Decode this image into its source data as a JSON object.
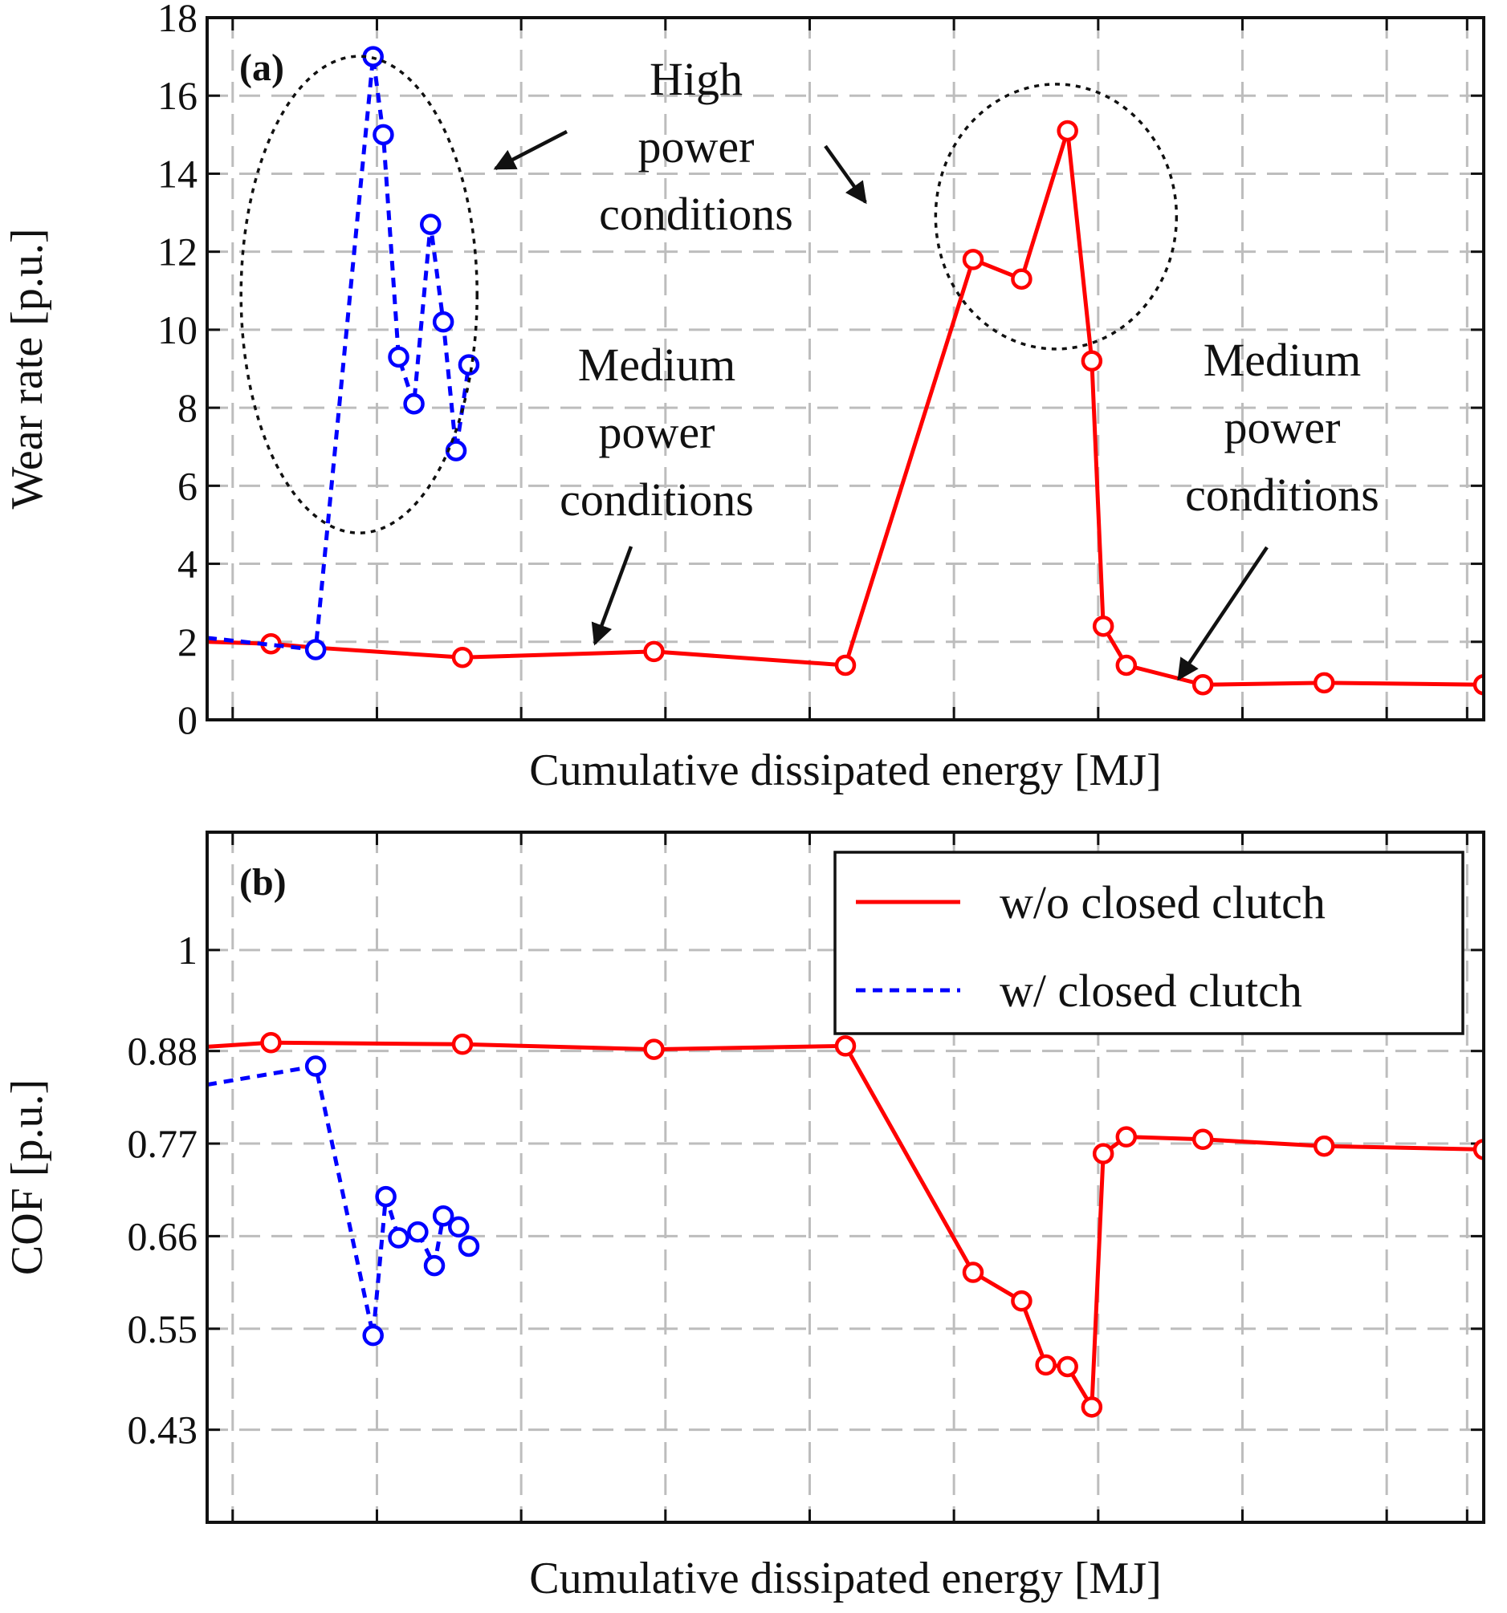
{
  "chart_data": [
    {
      "panel": "(a)",
      "type": "line",
      "xlabel": "Cumulative dissipated energy [MJ]",
      "ylabel": "Wear rate [p.u.]",
      "xlim": [
        0,
        100
      ],
      "ylim": [
        0,
        18
      ],
      "yticks": [
        "0",
        "2",
        "4",
        "6",
        "8",
        "10",
        "12",
        "14",
        "16",
        "18"
      ],
      "ytick_values": [
        0,
        2,
        4,
        6,
        8,
        10,
        12,
        14,
        16,
        18
      ],
      "xgrid": [
        2,
        13.3,
        24.6,
        35.9,
        47.2,
        58.5,
        69.8,
        81.1,
        92.4,
        98.7
      ],
      "series": [
        {
          "name": "w/o closed clutch",
          "style": "solid",
          "color": "#ff0000",
          "x": [
            0,
            5,
            8.5,
            20,
            35,
            50,
            60,
            63.8,
            67.4,
            69.3,
            70.2,
            72,
            78,
            87.5,
            100
          ],
          "y": [
            2.0,
            1.95,
            1.85,
            1.6,
            1.75,
            1.4,
            11.8,
            11.3,
            15.1,
            9.2,
            2.4,
            1.4,
            0.9,
            0.95,
            0.9
          ],
          "markers": [
            false,
            true,
            false,
            true,
            true,
            true,
            true,
            true,
            true,
            true,
            true,
            true,
            true,
            true,
            true
          ]
        },
        {
          "name": "w/ closed clutch",
          "style": "dashed",
          "color": "#0000ff",
          "x": [
            0,
            8.5,
            13,
            13.8,
            15,
            16.2,
            17.5,
            18.5,
            19.5,
            20.5
          ],
          "y": [
            2.1,
            1.8,
            17.0,
            15.0,
            9.3,
            8.1,
            12.7,
            10.2,
            6.9,
            9.1
          ],
          "markers": [
            false,
            true,
            true,
            true,
            true,
            true,
            true,
            true,
            true,
            true
          ]
        }
      ],
      "annotations": [
        {
          "id": "high_left",
          "shape": "ellipse"
        },
        {
          "id": "high_right",
          "shape": "ellipse"
        },
        {
          "id": "high_text",
          "lines": [
            "High",
            "power",
            "conditions"
          ]
        },
        {
          "id": "medium_left",
          "lines": [
            "Medium",
            "power",
            "conditions"
          ]
        },
        {
          "id": "medium_right",
          "lines": [
            "Medium",
            "power",
            "conditions"
          ]
        }
      ]
    },
    {
      "panel": "(b)",
      "type": "line",
      "xlabel": "Cumulative dissipated energy [MJ]",
      "ylabel": "COF [p.u.]",
      "xlim": [
        0,
        100
      ],
      "ylim": [
        0.32,
        1.14
      ],
      "yticks": [
        "0.43",
        "0.55",
        "0.66",
        "0.77",
        "0.88",
        "1"
      ],
      "ytick_values": [
        0.43,
        0.55,
        0.66,
        0.77,
        0.88,
        1.0
      ],
      "xgrid": [
        2,
        13.3,
        24.6,
        35.9,
        47.2,
        58.5,
        69.8,
        81.1,
        92.4,
        98.7
      ],
      "legend": {
        "location": "top-right",
        "entries": [
          {
            "label": "w/o closed clutch",
            "style": "solid",
            "color": "#ff0000"
          },
          {
            "label": "w/ closed clutch",
            "style": "dashed",
            "color": "#0000ff"
          }
        ]
      },
      "series": [
        {
          "name": "w/o closed clutch",
          "style": "solid",
          "color": "#ff0000",
          "x": [
            0,
            5,
            20,
            35,
            50,
            60,
            63.8,
            65.7,
            67.4,
            69.3,
            70.2,
            72,
            78,
            87.5,
            100
          ],
          "y": [
            0.885,
            0.89,
            0.888,
            0.882,
            0.886,
            0.617,
            0.583,
            0.507,
            0.505,
            0.457,
            0.758,
            0.778,
            0.775,
            0.767,
            0.763
          ],
          "markers": [
            false,
            true,
            true,
            true,
            true,
            true,
            true,
            true,
            true,
            true,
            true,
            true,
            true,
            true,
            true
          ]
        },
        {
          "name": "w/ closed clutch",
          "style": "dashed",
          "color": "#0000ff",
          "x": [
            0,
            8.5,
            13,
            14,
            15,
            16.5,
            17.8,
            18.5,
            19.7,
            20.5
          ],
          "y": [
            0.84,
            0.862,
            0.542,
            0.707,
            0.658,
            0.665,
            0.625,
            0.684,
            0.671,
            0.648
          ],
          "markers": [
            false,
            true,
            true,
            true,
            true,
            true,
            true,
            true,
            true,
            true
          ]
        }
      ]
    }
  ]
}
